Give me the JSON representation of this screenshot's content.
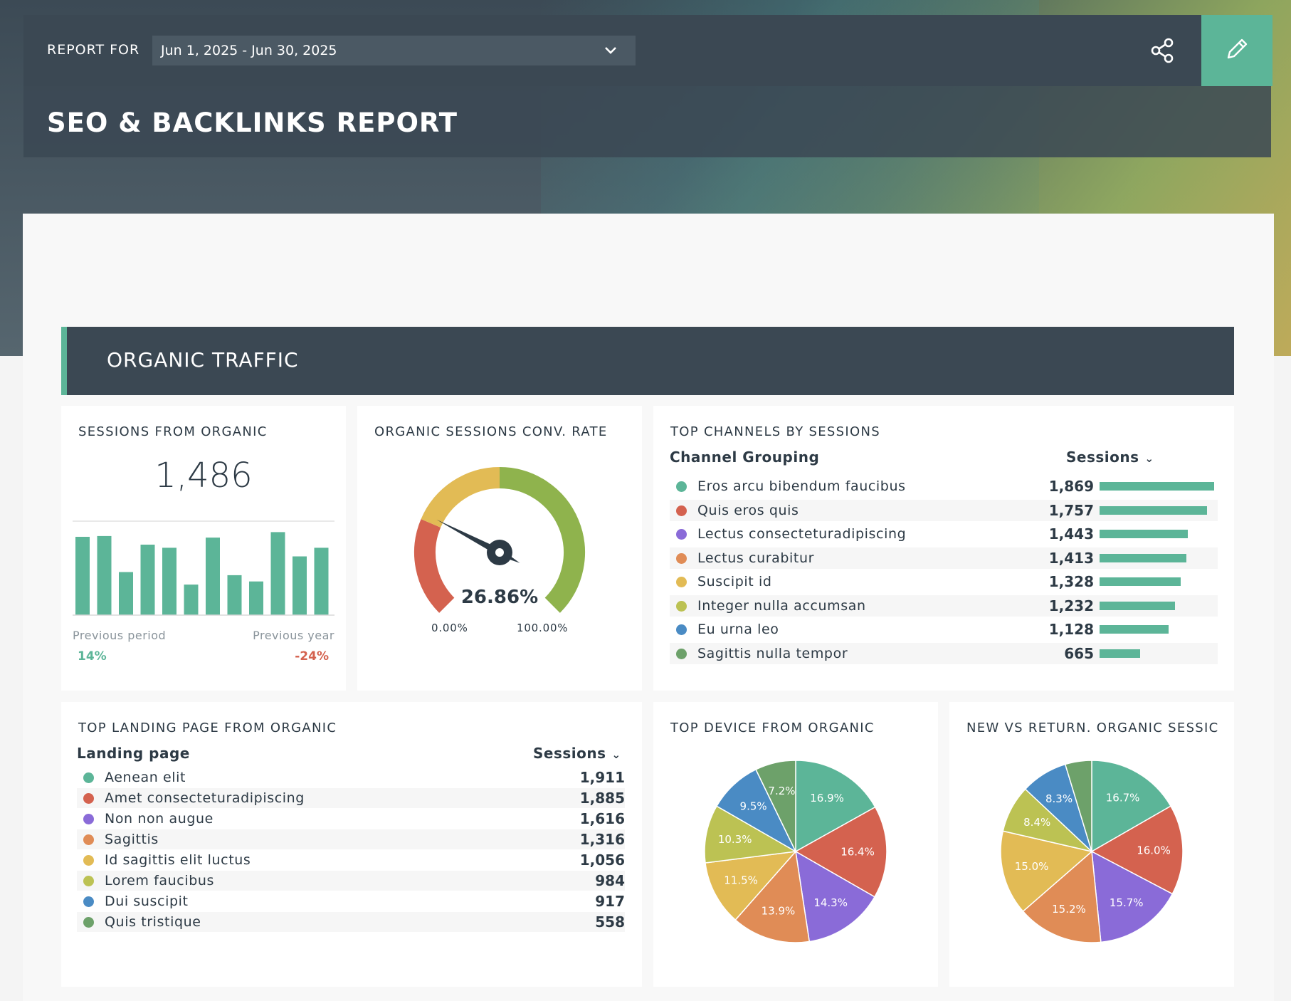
{
  "header": {
    "report_for_label": "REPORT FOR",
    "date_range": "Jun 1, 2025 - Jun 30, 2025",
    "title": "SEO & BACKLINKS REPORT",
    "share_icon": "share-icon",
    "edit_icon": "pencil-icon"
  },
  "section": {
    "title": "ORGANIC TRAFFIC"
  },
  "sessions_card": {
    "title": "SESSIONS FROM ORGANIC",
    "value": "1,486",
    "previous_period_label": "Previous period",
    "previous_period_delta": "14%",
    "previous_year_label": "Previous year",
    "previous_year_delta": "-24%"
  },
  "conv_card": {
    "title": "ORGANIC SESSIONS CONV. RATE",
    "value": "26.86%",
    "min_label": "0.00%",
    "max_label": "100.00%",
    "gauge_value": 26.86
  },
  "channels_card": {
    "title": "TOP CHANNELS BY SESSIONS",
    "col_label": "Channel Grouping",
    "col_value": "Sessions"
  },
  "landing_card": {
    "title": "TOP LANDING PAGE FROM ORGANIC",
    "col_label": "Landing page",
    "col_value": "Sessions"
  },
  "device_card": {
    "title": "TOP DEVICE FROM ORGANIC"
  },
  "newret_card": {
    "title": "NEW VS RETURN. ORGANIC SESSIC"
  },
  "colors": {
    "green": "#5cb598",
    "red": "#d4624f",
    "purple": "#8a6bd8",
    "orange": "#e08c56",
    "yellow": "#e2bb55",
    "lime": "#bcc253",
    "blue": "#4a8bc4",
    "darkgreen": "#6da16a"
  },
  "chart_data": [
    {
      "type": "bar",
      "values": [
        100,
        101,
        55,
        90,
        86,
        39,
        99,
        51,
        43,
        106,
        75,
        86
      ],
      "ylim": [
        0,
        120
      ]
    },
    {
      "type": "bar",
      "categories": [
        "Eros arcu bibendum faucibus",
        "Quis eros quis",
        "Lectus consecteturadipiscing",
        "Lectus curabitur",
        "Suscipit id",
        "Integer nulla accumsan",
        "Eu urna leo",
        "Sagittis nulla tempor"
      ],
      "values": [
        1869,
        1757,
        1443,
        1413,
        1328,
        1232,
        1128,
        665
      ],
      "labels": [
        "1,869",
        "1,757",
        "1,443",
        "1,413",
        "1,328",
        "1,232",
        "1,128",
        "665"
      ]
    },
    {
      "type": "table",
      "categories": [
        "Aenean elit",
        "Amet consecteturadipiscing",
        "Non non augue",
        "Sagittis",
        "Id sagittis elit luctus",
        "Lorem faucibus",
        "Dui suscipit",
        "Quis tristique"
      ],
      "values": [
        1911,
        1885,
        1616,
        1316,
        1056,
        984,
        917,
        558
      ],
      "labels": [
        "1,911",
        "1,885",
        "1,616",
        "1,316",
        "1,056",
        "984",
        "917",
        "558"
      ]
    },
    {
      "type": "pie",
      "values": [
        16.9,
        16.4,
        14.3,
        13.9,
        11.5,
        10.3,
        9.5,
        7.2
      ],
      "labels": [
        "16.9%",
        "16.4%",
        "14.3%",
        "13.9%",
        "11.5%",
        "10.3%",
        "9.5%",
        "7.2%"
      ]
    },
    {
      "type": "pie",
      "values": [
        16.7,
        16.0,
        15.7,
        15.2,
        15.0,
        8.4,
        8.3,
        4.7
      ],
      "labels": [
        "16.7%",
        "16.0%",
        "15.7%",
        "15.2%",
        "15.0%",
        "8.4%",
        "8.3%",
        ""
      ]
    }
  ]
}
